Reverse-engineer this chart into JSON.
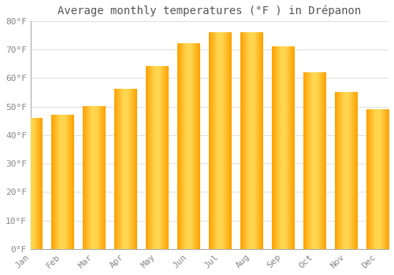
{
  "title": "Average monthly temperatures (°F ) in Drépanon",
  "months": [
    "Jan",
    "Feb",
    "Mar",
    "Apr",
    "May",
    "Jun",
    "Jul",
    "Aug",
    "Sep",
    "Oct",
    "Nov",
    "Dec"
  ],
  "values": [
    46,
    47,
    50,
    56,
    64,
    72,
    76,
    76,
    71,
    62,
    55,
    49
  ],
  "bar_color_center": "#FFD54F",
  "bar_color_edge": "#FFA000",
  "ylim": [
    0,
    80
  ],
  "yticks": [
    0,
    10,
    20,
    30,
    40,
    50,
    60,
    70,
    80
  ],
  "ytick_labels": [
    "0°F",
    "10°F",
    "20°F",
    "30°F",
    "40°F",
    "50°F",
    "60°F",
    "70°F",
    "80°F"
  ],
  "bg_color": "#FFFFFF",
  "grid_color": "#E0E0E0",
  "bar_edge_color": "#CCCCCC",
  "title_fontsize": 10,
  "tick_fontsize": 8,
  "font_family": "monospace"
}
